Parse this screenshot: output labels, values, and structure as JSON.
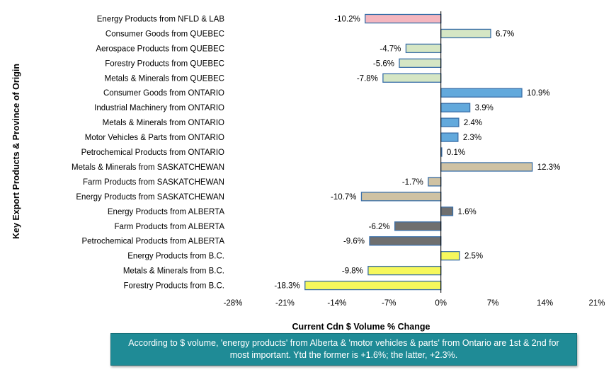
{
  "chart_data": {
    "type": "bar",
    "orientation": "horizontal",
    "title": "",
    "xlabel": "Current Cdn $ Volume % Change",
    "ylabel": "Key Export Products & Province of Origin",
    "xlim": [
      -28,
      21
    ],
    "xticks": [
      "-28%",
      "-21%",
      "-14%",
      "-7%",
      "0%",
      "7%",
      "14%",
      "21%"
    ],
    "grid": false,
    "categories": [
      "Energy Products from NFLD & LAB",
      "Consumer Goods from QUEBEC",
      "Aerospace Products from QUEBEC",
      "Forestry Products from QUEBEC",
      "Metals & Minerals from QUEBEC",
      "Consumer Goods from ONTARIO",
      "Industrial Machinery from ONTARIO",
      "Metals & Minerals from ONTARIO",
      "Motor Vehicles & Parts from ONTARIO",
      "Petrochemical Products from ONTARIO",
      "Metals & Minerals from SASKATCHEWAN",
      "Farm Products from SASKATCHEWAN",
      "Energy Products from SASKATCHEWAN",
      "Energy Products from ALBERTA",
      "Farm Products from ALBERTA",
      "Petrochemical Products from ALBERTA",
      "Energy Products from B.C.",
      "Metals & Minerals from B.C.",
      "Forestry Products from B.C."
    ],
    "values": [
      -10.2,
      6.7,
      -4.7,
      -5.6,
      -7.8,
      10.9,
      3.9,
      2.4,
      2.3,
      0.1,
      12.3,
      -1.7,
      -10.7,
      1.6,
      -6.2,
      -9.6,
      2.5,
      -9.8,
      -18.3
    ],
    "value_labels": [
      "-10.2%",
      "6.7%",
      "-4.7%",
      "-5.6%",
      "-7.8%",
      "10.9%",
      "3.9%",
      "2.4%",
      "2.3%",
      "0.1%",
      "12.3%",
      "-1.7%",
      "-10.7%",
      "1.6%",
      "-6.2%",
      "-9.6%",
      "2.5%",
      "-9.8%",
      "-18.3%"
    ],
    "bar_colors": [
      "#f4b6bf",
      "#d5e6c4",
      "#d5e6c4",
      "#d5e6c4",
      "#d5e6c4",
      "#62a9dc",
      "#62a9dc",
      "#62a9dc",
      "#62a9dc",
      "#62a9dc",
      "#cfc2a3",
      "#cfc2a3",
      "#cfc2a3",
      "#6f6f6f",
      "#6f6f6f",
      "#6f6f6f",
      "#f6f85c",
      "#f6f85c",
      "#f6f85c"
    ],
    "bar_outline": "#3a6fa8"
  },
  "note": {
    "text": "According to $ volume, 'energy products' from Alberta & 'motor vehicles & parts' from Ontario are 1st & 2nd for most important. Ytd the former is +1.6%; the latter, +2.3%."
  }
}
